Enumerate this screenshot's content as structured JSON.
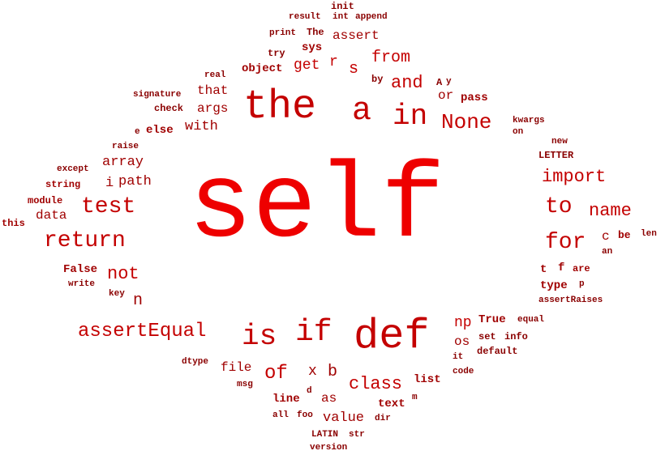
{
  "palette": {
    "bright": "#ee0000",
    "mid": "#c40000",
    "dark": "#a00000",
    "darker": "#8a0000"
  },
  "words": [
    {
      "text": "self",
      "tone": "bright"
    },
    {
      "text": "the",
      "tone": "mid"
    },
    {
      "text": "a",
      "tone": "mid"
    },
    {
      "text": "def",
      "tone": "mid"
    },
    {
      "text": "in",
      "tone": "mid"
    },
    {
      "text": "None",
      "tone": "mid"
    },
    {
      "text": "is",
      "tone": "mid"
    },
    {
      "text": "if",
      "tone": "mid"
    },
    {
      "text": "return",
      "tone": "mid"
    },
    {
      "text": "test",
      "tone": "mid"
    },
    {
      "text": "to",
      "tone": "mid"
    },
    {
      "text": "for",
      "tone": "mid"
    },
    {
      "text": "assertEqual",
      "tone": "mid"
    },
    {
      "text": "import",
      "tone": "mid"
    },
    {
      "text": "name",
      "tone": "mid"
    },
    {
      "text": "class",
      "tone": "mid"
    },
    {
      "text": "of",
      "tone": "mid"
    },
    {
      "text": "not",
      "tone": "mid"
    },
    {
      "text": "from",
      "tone": "mid"
    },
    {
      "text": "and",
      "tone": "mid"
    },
    {
      "text": "s",
      "tone": "mid"
    },
    {
      "text": "r",
      "tone": "mid"
    },
    {
      "text": "get",
      "tone": "mid"
    },
    {
      "text": "np",
      "tone": "mid"
    },
    {
      "text": "path",
      "tone": "dark"
    },
    {
      "text": "i",
      "tone": "dark"
    },
    {
      "text": "array",
      "tone": "dark"
    },
    {
      "text": "with",
      "tone": "dark"
    },
    {
      "text": "args",
      "tone": "dark"
    },
    {
      "text": "that",
      "tone": "dark"
    },
    {
      "text": "data",
      "tone": "dark"
    },
    {
      "text": "value",
      "tone": "dark"
    },
    {
      "text": "b",
      "tone": "dark"
    },
    {
      "text": "x",
      "tone": "dark"
    },
    {
      "text": "file",
      "tone": "dark"
    },
    {
      "text": "n",
      "tone": "dark"
    },
    {
      "text": "assert",
      "tone": "dark"
    },
    {
      "text": "or",
      "tone": "dark"
    },
    {
      "text": "pass",
      "tone": "dark"
    },
    {
      "text": "os",
      "tone": "dark"
    },
    {
      "text": "True",
      "tone": "dark"
    },
    {
      "text": "c",
      "tone": "dark"
    },
    {
      "text": "be",
      "tone": "dark"
    },
    {
      "text": "list",
      "tone": "dark"
    },
    {
      "text": "as",
      "tone": "dark"
    },
    {
      "text": "text",
      "tone": "dark"
    },
    {
      "text": "line",
      "tone": "dark"
    },
    {
      "text": "False",
      "tone": "dark"
    },
    {
      "text": "type",
      "tone": "dark"
    },
    {
      "text": "else",
      "tone": "dark"
    },
    {
      "text": "sys",
      "tone": "dark"
    },
    {
      "text": "object",
      "tone": "dark"
    },
    {
      "text": "t",
      "tone": "dark"
    },
    {
      "text": "f",
      "tone": "dark"
    },
    {
      "text": "are",
      "tone": "dark"
    },
    {
      "text": "string",
      "tone": "dark"
    },
    {
      "text": "module",
      "tone": "dark"
    },
    {
      "text": "this",
      "tone": "dark"
    },
    {
      "text": "init",
      "tone": "darker"
    },
    {
      "text": "result",
      "tone": "darker"
    },
    {
      "text": "int",
      "tone": "darker"
    },
    {
      "text": "append",
      "tone": "darker"
    },
    {
      "text": "print",
      "tone": "darker"
    },
    {
      "text": "The",
      "tone": "darker"
    },
    {
      "text": "try",
      "tone": "darker"
    },
    {
      "text": "real",
      "tone": "darker"
    },
    {
      "text": "by",
      "tone": "darker"
    },
    {
      "text": "A",
      "tone": "darker"
    },
    {
      "text": "y",
      "tone": "darker"
    },
    {
      "text": "signature",
      "tone": "darker"
    },
    {
      "text": "check",
      "tone": "darker"
    },
    {
      "text": "kwargs",
      "tone": "darker"
    },
    {
      "text": "on",
      "tone": "darker"
    },
    {
      "text": "e",
      "tone": "darker"
    },
    {
      "text": "raise",
      "tone": "darker"
    },
    {
      "text": "new",
      "tone": "darker"
    },
    {
      "text": "LETTER",
      "tone": "darker"
    },
    {
      "text": "except",
      "tone": "darker"
    },
    {
      "text": "len",
      "tone": "darker"
    },
    {
      "text": "an",
      "tone": "darker"
    },
    {
      "text": "write",
      "tone": "darker"
    },
    {
      "text": "key",
      "tone": "darker"
    },
    {
      "text": "p",
      "tone": "darker"
    },
    {
      "text": "assertRaises",
      "tone": "darker"
    },
    {
      "text": "equal",
      "tone": "darker"
    },
    {
      "text": "set",
      "tone": "darker"
    },
    {
      "text": "info",
      "tone": "darker"
    },
    {
      "text": "default",
      "tone": "darker"
    },
    {
      "text": "it",
      "tone": "darker"
    },
    {
      "text": "code",
      "tone": "darker"
    },
    {
      "text": "dtype",
      "tone": "darker"
    },
    {
      "text": "msg",
      "tone": "darker"
    },
    {
      "text": "d",
      "tone": "darker"
    },
    {
      "text": "m",
      "tone": "darker"
    },
    {
      "text": "all",
      "tone": "darker"
    },
    {
      "text": "foo",
      "tone": "darker"
    },
    {
      "text": "dir",
      "tone": "darker"
    },
    {
      "text": "LATIN",
      "tone": "darker"
    },
    {
      "text": "str",
      "tone": "darker"
    },
    {
      "text": "version",
      "tone": "darker"
    }
  ]
}
